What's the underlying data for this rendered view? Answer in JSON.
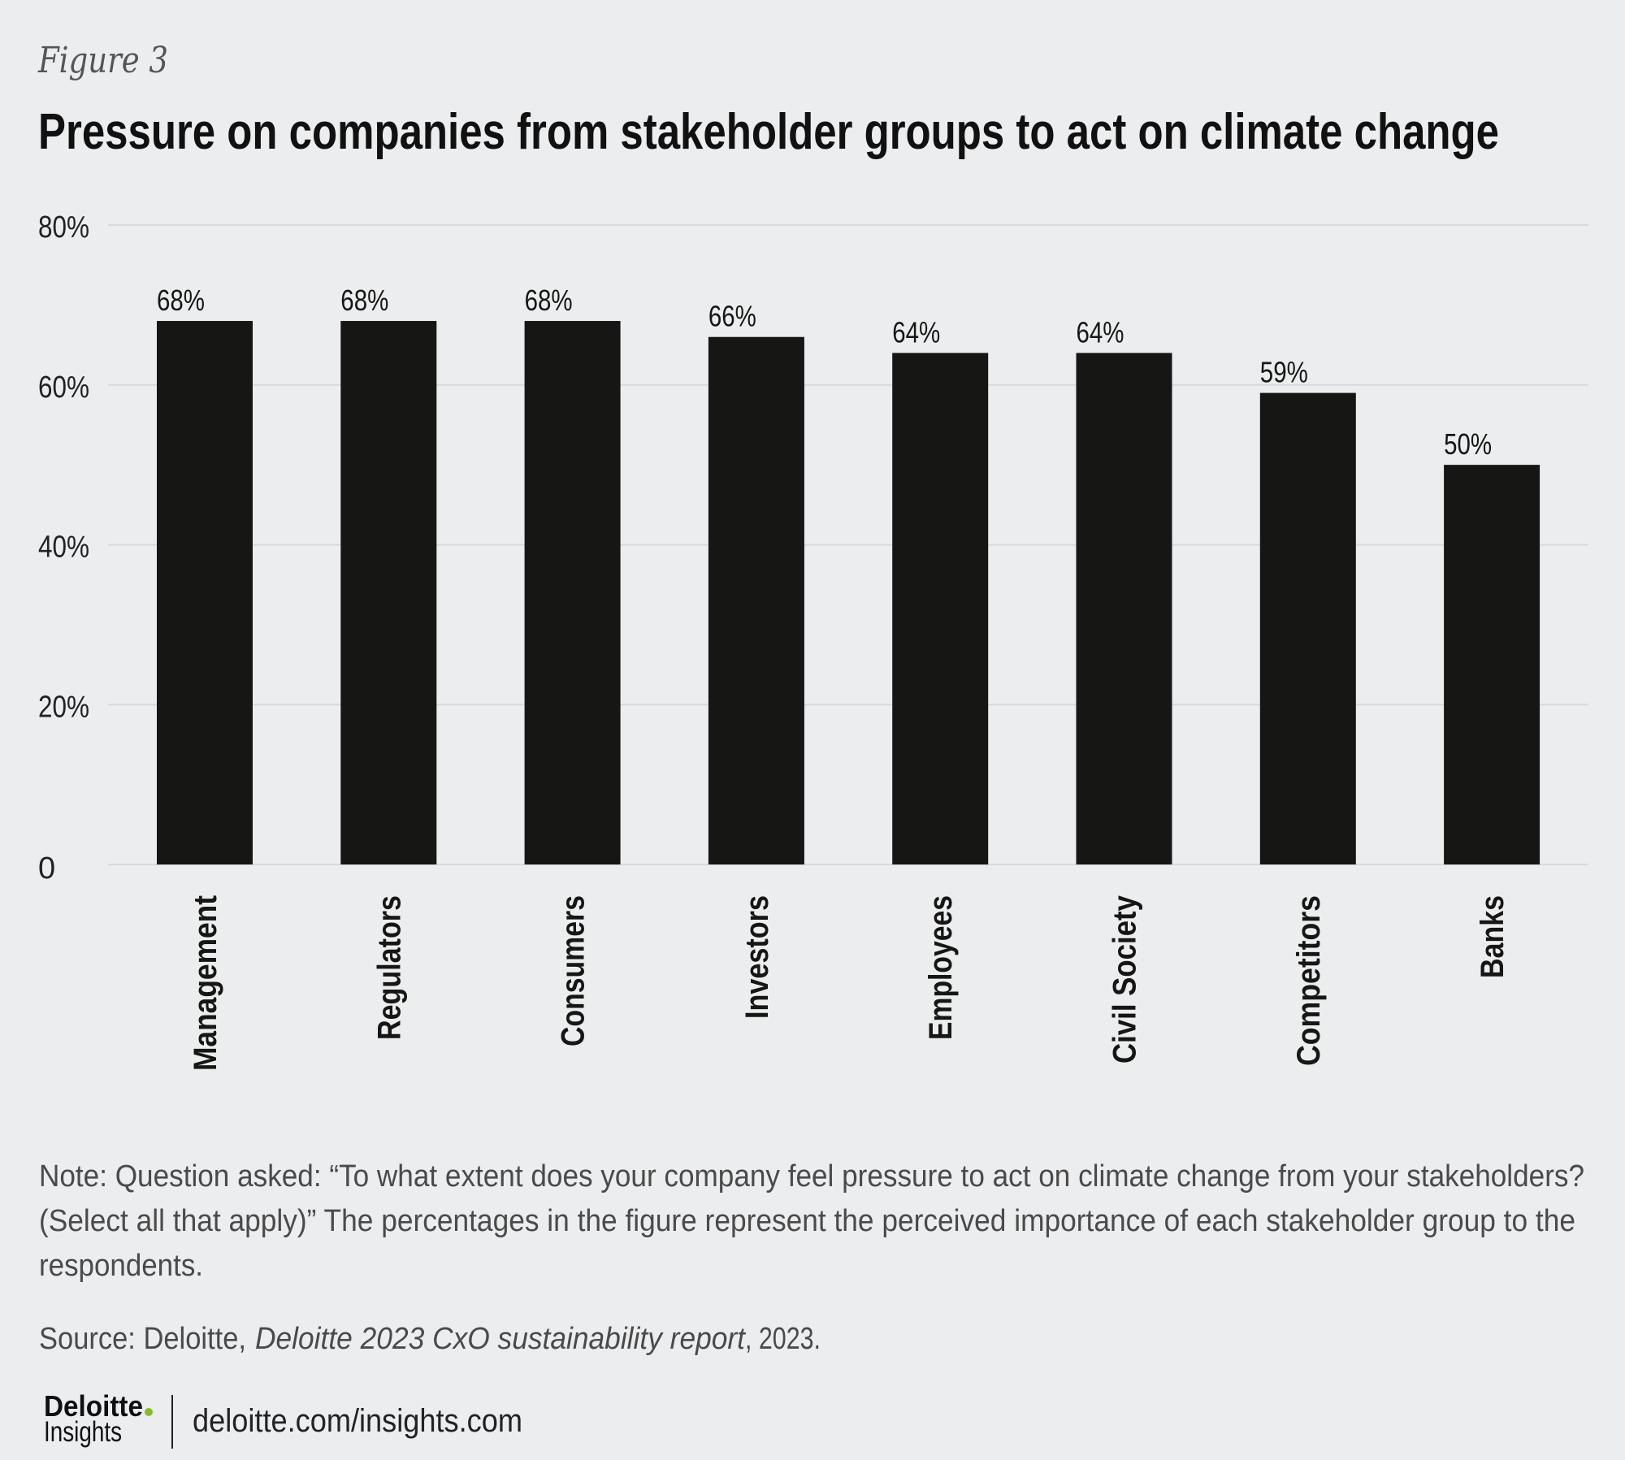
{
  "figure_label": "Figure 3",
  "chart_data": {
    "type": "bar",
    "title": "Pressure on companies from stakeholder groups to act on climate change",
    "xlabel": "",
    "ylabel": "",
    "categories": [
      "Management",
      "Regulators",
      "Consumers",
      "Investors",
      "Employees",
      "Civil Society",
      "Competitors",
      "Banks"
    ],
    "values": [
      68,
      68,
      68,
      66,
      64,
      64,
      59,
      50
    ],
    "value_labels": [
      "68%",
      "68%",
      "68%",
      "66%",
      "64%",
      "64%",
      "59%",
      "50%"
    ],
    "ylim": [
      0,
      80
    ],
    "yticks": [
      0,
      20,
      40,
      60,
      80
    ],
    "ytick_labels": [
      "0",
      "20%",
      "40%",
      "60%",
      "80%"
    ],
    "grid": true,
    "legend": "none",
    "bar_color": "#161614"
  },
  "note": {
    "lines": [
      "Note: Question asked: “To what extent does your company feel pressure to act on climate change from your stakeholders?",
      "(Select all that apply)” The percentages in the figure represent the perceived importance of each stakeholder group to the",
      "respondents."
    ]
  },
  "source": {
    "prefix": "Source: Deloitte,",
    "title_italic": "Deloitte 2023 CxO sustainability report",
    "suffix": ", 2023."
  },
  "footer": {
    "logo_name": "Deloitte",
    "logo_sub": "Insights",
    "logo_dot_color": "#86bc25",
    "url": "deloitte.com/insights.com"
  },
  "colors": {
    "background": "#ecedef",
    "gridline": "#d8d9db",
    "bar": "#161614"
  }
}
